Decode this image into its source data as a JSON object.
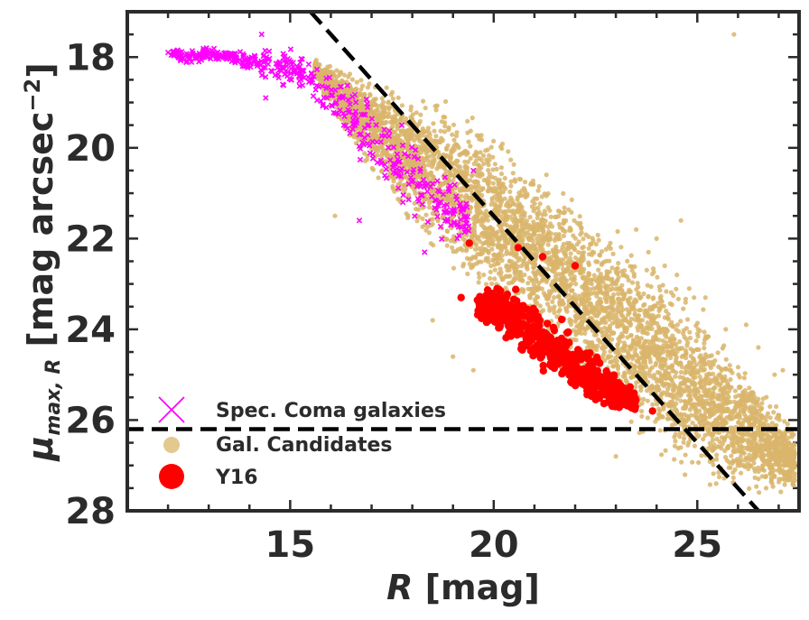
{
  "chart_data": {
    "type": "scatter",
    "title": "",
    "xlabel": {
      "italic": "R",
      "rest": " [mag]"
    },
    "ylabel": {
      "mu": "μ",
      "sub": "max, R",
      "rest": " [mag arcsec",
      "exp": "−2",
      "close": "]"
    },
    "xlim": [
      11.0,
      27.5
    ],
    "ylim": [
      28.0,
      17.0
    ],
    "xticks": [
      15,
      20,
      25
    ],
    "yticks": [
      18,
      20,
      22,
      24,
      26,
      28
    ],
    "xtick_labels": [
      "15",
      "20",
      "25"
    ],
    "ytick_labels": [
      "18",
      "20",
      "22",
      "24",
      "26",
      "28"
    ],
    "legend_position": "lower-left",
    "colors": {
      "candidates": "#d9b56b",
      "spec": "#ff00ff",
      "y16": "#ff0000",
      "axes": "#2b2b2b"
    },
    "reference_lines": [
      {
        "name": "surface-brightness-limit",
        "style": "dashed",
        "y": 26.2
      },
      {
        "name": "diagonal-cut",
        "style": "dashed",
        "from": [
          15.5,
          17.0
        ],
        "to": [
          26.5,
          28.0
        ]
      }
    ],
    "series": [
      {
        "name": "Gal. Candidates",
        "marker": "dot",
        "bands": [
          {
            "x": 15.6,
            "y_range": [
              18.0,
              18.5
            ]
          },
          {
            "x": 16.0,
            "y_range": [
              18.1,
              19.2
            ]
          },
          {
            "x": 16.5,
            "y_range": [
              18.2,
              20.0
            ]
          },
          {
            "x": 17.0,
            "y_range": [
              18.3,
              20.6
            ]
          },
          {
            "x": 17.5,
            "y_range": [
              18.4,
              21.3
            ]
          },
          {
            "x": 18.0,
            "y_range": [
              18.5,
              22.0
            ]
          },
          {
            "x": 18.5,
            "y_range": [
              18.7,
              22.6
            ]
          },
          {
            "x": 19.0,
            "y_range": [
              18.9,
              23.1
            ]
          },
          {
            "x": 19.5,
            "y_range": [
              19.1,
              23.5
            ]
          },
          {
            "x": 20.0,
            "y_range": [
              19.4,
              23.9
            ]
          },
          {
            "x": 20.5,
            "y_range": [
              19.7,
              24.3
            ]
          },
          {
            "x": 21.0,
            "y_range": [
              20.0,
              24.7
            ]
          },
          {
            "x": 21.5,
            "y_range": [
              20.3,
              25.1
            ]
          },
          {
            "x": 22.0,
            "y_range": [
              20.7,
              25.5
            ]
          },
          {
            "x": 22.5,
            "y_range": [
              21.1,
              25.9
            ]
          },
          {
            "x": 23.0,
            "y_range": [
              21.5,
              26.3
            ]
          },
          {
            "x": 23.5,
            "y_range": [
              21.9,
              26.6
            ]
          },
          {
            "x": 24.0,
            "y_range": [
              22.3,
              27.0
            ]
          },
          {
            "x": 24.5,
            "y_range": [
              22.7,
              27.3
            ]
          },
          {
            "x": 25.0,
            "y_range": [
              23.2,
              27.6
            ]
          },
          {
            "x": 25.5,
            "y_range": [
              23.7,
              27.8
            ]
          },
          {
            "x": 26.0,
            "y_range": [
              24.3,
              27.8
            ]
          },
          {
            "x": 26.5,
            "y_range": [
              25.0,
              27.8
            ]
          },
          {
            "x": 27.0,
            "y_range": [
              25.6,
              27.8
            ]
          },
          {
            "x": 27.4,
            "y_range": [
              26.0,
              27.8
            ]
          }
        ],
        "outliers": [
          [
            25.9,
            17.5
          ],
          [
            24.0,
            22.0
          ],
          [
            23.8,
            22.3
          ],
          [
            24.2,
            22.6
          ],
          [
            24.5,
            22.8
          ],
          [
            24.8,
            23.1
          ],
          [
            25.2,
            23.3
          ],
          [
            26.5,
            24.4
          ],
          [
            26.9,
            25.0
          ],
          [
            27.1,
            24.9
          ],
          [
            16.1,
            21.5
          ],
          [
            18.5,
            23.8
          ],
          [
            19.0,
            24.6
          ],
          [
            19.5,
            24.9
          ],
          [
            23.0,
            26.8
          ],
          [
            24.6,
            21.6
          ],
          [
            23.5,
            21.8
          ],
          [
            25.7,
            24.0
          ],
          [
            26.2,
            23.9
          ],
          [
            27.2,
            26.2
          ]
        ]
      },
      {
        "name": "Spec. Coma galaxies",
        "marker": "x",
        "bands": [
          {
            "x": 12.0,
            "y_range": [
              17.8,
              18.0
            ]
          },
          {
            "x": 12.5,
            "y_range": [
              17.8,
              18.2
            ]
          },
          {
            "x": 13.0,
            "y_range": [
              17.7,
              18.1
            ]
          },
          {
            "x": 13.5,
            "y_range": [
              17.8,
              18.2
            ]
          },
          {
            "x": 14.0,
            "y_range": [
              17.8,
              18.4
            ]
          },
          {
            "x": 14.5,
            "y_range": [
              17.8,
              18.6
            ]
          },
          {
            "x": 15.0,
            "y_range": [
              17.8,
              18.7
            ]
          },
          {
            "x": 15.5,
            "y_range": [
              17.9,
              19.0
            ]
          },
          {
            "x": 16.0,
            "y_range": [
              18.0,
              19.6
            ]
          },
          {
            "x": 16.5,
            "y_range": [
              18.2,
              20.2
            ]
          },
          {
            "x": 17.0,
            "y_range": [
              18.6,
              20.8
            ]
          },
          {
            "x": 17.5,
            "y_range": [
              19.0,
              21.4
            ]
          },
          {
            "x": 18.0,
            "y_range": [
              19.4,
              21.8
            ]
          },
          {
            "x": 18.5,
            "y_range": [
              20.0,
              22.2
            ]
          },
          {
            "x": 19.0,
            "y_range": [
              20.5,
              22.4
            ]
          },
          {
            "x": 19.4,
            "y_range": [
              21.0,
              22.2
            ]
          }
        ],
        "outliers": [
          [
            14.3,
            17.5
          ],
          [
            14.4,
            18.9
          ],
          [
            12.0,
            17.9
          ],
          [
            16.7,
            21.6
          ],
          [
            18.3,
            22.3
          ],
          [
            19.5,
            20.5
          ]
        ]
      },
      {
        "name": "Y16",
        "marker": "circle",
        "bands": [
          {
            "x": 19.6,
            "y_range": [
              23.2,
              23.8
            ]
          },
          {
            "x": 20.0,
            "y_range": [
              22.8,
              24.3
            ]
          },
          {
            "x": 20.5,
            "y_range": [
              23.0,
              24.6
            ]
          },
          {
            "x": 21.0,
            "y_range": [
              23.3,
              25.0
            ]
          },
          {
            "x": 21.5,
            "y_range": [
              23.6,
              25.3
            ]
          },
          {
            "x": 22.0,
            "y_range": [
              24.0,
              25.6
            ]
          },
          {
            "x": 22.5,
            "y_range": [
              24.4,
              25.8
            ]
          },
          {
            "x": 23.0,
            "y_range": [
              24.8,
              25.9
            ]
          },
          {
            "x": 23.5,
            "y_range": [
              25.4,
              25.9
            ]
          }
        ],
        "outliers": [
          [
            19.4,
            22.1
          ],
          [
            20.6,
            22.2
          ],
          [
            21.2,
            22.4
          ],
          [
            22.0,
            22.6
          ],
          [
            19.2,
            23.3
          ],
          [
            23.9,
            25.8
          ]
        ]
      }
    ]
  }
}
